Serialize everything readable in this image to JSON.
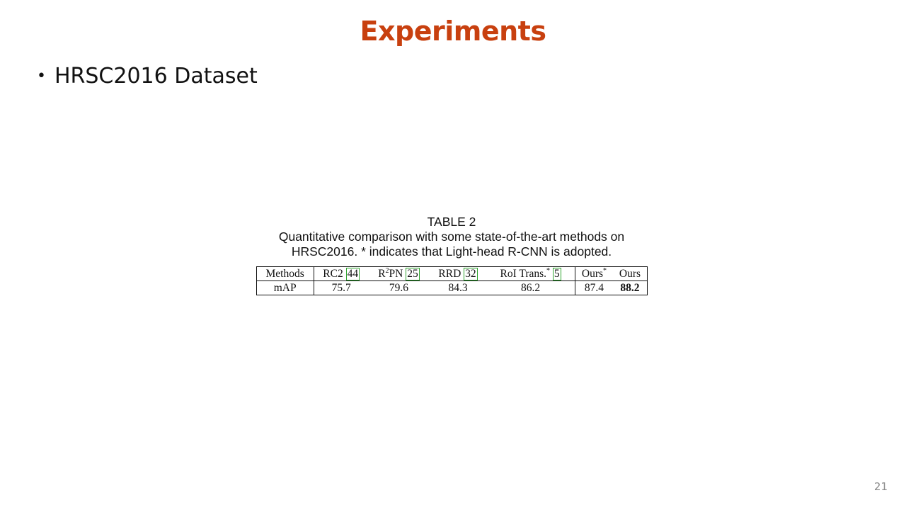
{
  "slide": {
    "title": "Experiments",
    "bullet": "HRSC2016 Dataset",
    "page_number": "21"
  },
  "table": {
    "heading": "TABLE 2",
    "caption_line1": "Quantitative comparison with some state-of-the-art methods on",
    "caption_line2": "HRSC2016. * indicates that Light-head R-CNN is adopted.",
    "row_header_methods": "Methods",
    "row_header_map": "mAP",
    "columns": [
      {
        "name": "RC2",
        "sup": "",
        "star": "",
        "cite": "44",
        "map": "75.7"
      },
      {
        "name": "R",
        "sup": "2",
        "name_rest": "PN",
        "cite": "25",
        "map": "79.6"
      },
      {
        "name": "RRD",
        "cite": "32",
        "map": "84.3"
      },
      {
        "name": "RoI Trans.",
        "star": "*",
        "cite": "5",
        "map": "86.2"
      },
      {
        "name": "Ours",
        "star": "*",
        "map": "87.4"
      },
      {
        "name": "Ours",
        "map": "88.2",
        "best": true
      }
    ]
  },
  "colors": {
    "title": "#c8400f",
    "citation_box": "#2fa52f",
    "page_number": "#8a8a8a"
  }
}
